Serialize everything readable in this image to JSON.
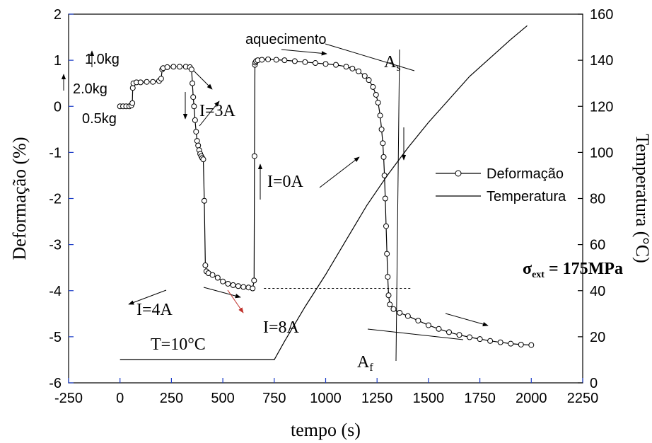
{
  "chart_data": {
    "type": "line",
    "xlabel": "tempo (s)",
    "ylabel": "Deformação (%)",
    "y2label": "Temperatura (°C)",
    "xlim": [
      -250,
      2250
    ],
    "xticks": [
      -250,
      0,
      250,
      500,
      750,
      1000,
      1250,
      1500,
      1750,
      2000,
      2250
    ],
    "ylim": [
      -6,
      2
    ],
    "yticks": [
      -6,
      -5,
      -4,
      -3,
      -2,
      -1,
      0,
      1,
      2
    ],
    "y2lim": [
      0,
      160
    ],
    "y2ticks": [
      0,
      20,
      40,
      60,
      80,
      100,
      120,
      140,
      160
    ],
    "series": [
      {
        "name": "Deformação",
        "color": "#000000",
        "marker": "circle",
        "x": [
          0,
          15,
          30,
          45,
          55,
          60,
          62,
          65,
          80,
          100,
          130,
          160,
          190,
          200,
          205,
          210,
          230,
          260,
          290,
          320,
          340,
          348,
          352,
          356,
          360,
          365,
          370,
          375,
          380,
          385,
          390,
          395,
          400,
          405,
          410,
          415,
          420,
          430,
          450,
          475,
          500,
          525,
          550,
          575,
          600,
          625,
          645,
          652,
          654,
          656,
          658,
          662,
          670,
          690,
          720,
          760,
          800,
          850,
          900,
          950,
          1000,
          1050,
          1100,
          1130,
          1160,
          1190,
          1210,
          1230,
          1245,
          1255,
          1265,
          1272,
          1278,
          1282,
          1286,
          1290,
          1294,
          1298,
          1302,
          1306,
          1312,
          1330,
          1360,
          1400,
          1450,
          1500,
          1550,
          1600,
          1650,
          1700,
          1750,
          1800,
          1850,
          1900,
          1950,
          2000
        ],
        "values": [
          0,
          0,
          0,
          0,
          0.02,
          0.07,
          0.4,
          0.5,
          0.52,
          0.52,
          0.53,
          0.53,
          0.55,
          0.6,
          0.8,
          0.83,
          0.85,
          0.86,
          0.86,
          0.86,
          0.85,
          0.8,
          0.5,
          0.2,
          0,
          -0.3,
          -0.55,
          -0.75,
          -0.85,
          -0.95,
          -1.03,
          -1.08,
          -1.12,
          -1.15,
          -2.05,
          -3.45,
          -3.58,
          -3.62,
          -3.66,
          -3.72,
          -3.8,
          -3.85,
          -3.88,
          -3.9,
          -3.92,
          -3.93,
          -3.95,
          -3.78,
          -1.08,
          0.9,
          0.95,
          0.98,
          1.0,
          1.01,
          1.02,
          1.01,
          1.0,
          0.98,
          0.96,
          0.94,
          0.92,
          0.9,
          0.86,
          0.82,
          0.76,
          0.66,
          0.57,
          0.42,
          0.25,
          0.08,
          -0.2,
          -0.5,
          -0.8,
          -1.1,
          -1.5,
          -2.0,
          -2.6,
          -3.2,
          -3.7,
          -4.1,
          -4.3,
          -4.4,
          -4.48,
          -4.55,
          -4.65,
          -4.75,
          -4.83,
          -4.9,
          -4.96,
          -5.01,
          -5.05,
          -5.09,
          -5.12,
          -5.15,
          -5.17,
          -5.18
        ]
      },
      {
        "name": "Temperatura",
        "color": "#000000",
        "axis": "y2",
        "x": [
          0,
          750,
          800,
          900,
          1000,
          1100,
          1200,
          1300,
          1400,
          1500,
          1600,
          1700,
          1800,
          1900,
          1980
        ],
        "values": [
          10,
          10,
          18,
          33,
          47,
          62,
          77,
          90,
          102,
          113,
          123,
          133,
          141,
          149,
          155
        ]
      }
    ],
    "reference_line": {
      "x": [
        700,
        1420
      ],
      "y": -3.95
    },
    "annotations": [
      {
        "text": "aquecimento"
      },
      {
        "text": "1.0kg"
      },
      {
        "text": "2.0kg"
      },
      {
        "text": "0.5kg"
      },
      {
        "text": "I=3A"
      },
      {
        "text": "I=0A"
      },
      {
        "text": "I=4A"
      },
      {
        "text": "I=8A"
      },
      {
        "text": "T=10°C"
      },
      {
        "text": "A",
        "sub": "s"
      },
      {
        "text": "A",
        "sub": "f"
      },
      {
        "text": "σ",
        "sub": "ext",
        "tail": " = 175MPa"
      }
    ]
  }
}
